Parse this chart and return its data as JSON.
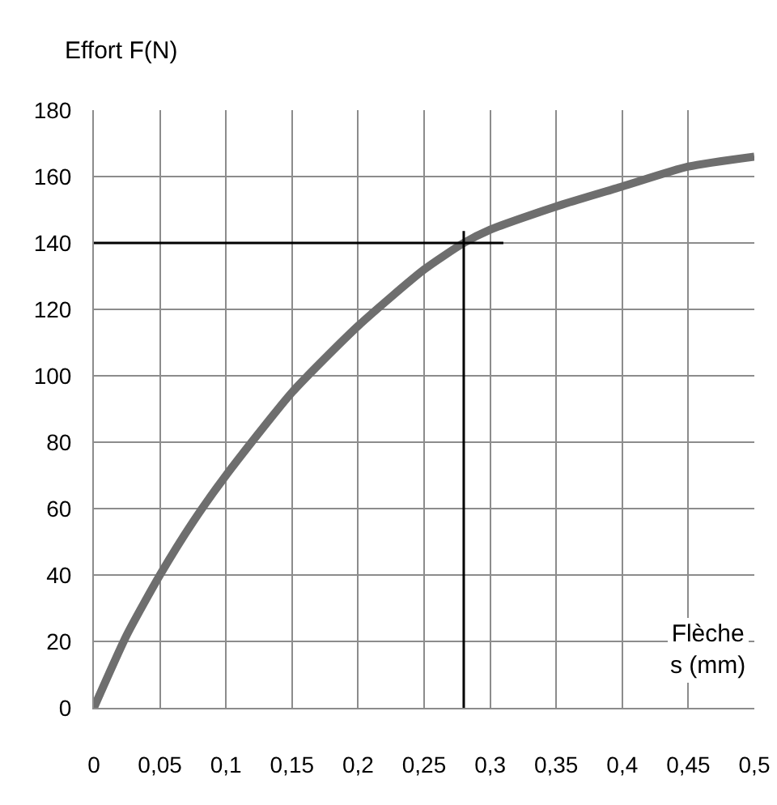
{
  "chart_data": {
    "type": "line",
    "xlabel": "Flèche\ns (mm)",
    "ylabel": "Effort F(N)",
    "x": [
      0,
      0.025,
      0.05,
      0.075,
      0.1,
      0.15,
      0.2,
      0.25,
      0.28,
      0.3,
      0.35,
      0.4,
      0.45,
      0.5
    ],
    "series": [
      {
        "color": "#6e6e6e",
        "values": [
          0,
          22,
          40,
          56,
          70,
          95,
          115,
          132,
          140,
          144,
          151,
          157,
          163,
          166
        ]
      }
    ],
    "xlim": [
      0,
      0.5
    ],
    "ylim": [
      0,
      180
    ],
    "xticks": [
      0,
      {
        "value": 0.05,
        "label": "0,05"
      },
      {
        "value": 0.1,
        "label": "0,1"
      },
      {
        "value": 0.15,
        "label": "0,15"
      },
      {
        "value": 0.2,
        "label": "0,2"
      },
      {
        "value": 0.25,
        "label": "0,25"
      },
      {
        "value": 0.3,
        "label": "0,3"
      },
      {
        "value": 0.35,
        "label": "0,35"
      },
      {
        "value": 0.4,
        "label": "0,4"
      },
      {
        "value": 0.45,
        "label": "0,45"
      },
      {
        "value": 0.5,
        "label": "0,5"
      }
    ],
    "yticks": [
      0,
      20,
      40,
      60,
      80,
      100,
      120,
      140,
      160,
      180
    ],
    "ref_lines": [
      {
        "axis": "y",
        "value": 140,
        "color": "#000000"
      },
      {
        "axis": "x",
        "value": 0.28,
        "color": "#000000"
      }
    ],
    "grid": true,
    "marker": "none",
    "line_style": "solid",
    "legend": false
  }
}
